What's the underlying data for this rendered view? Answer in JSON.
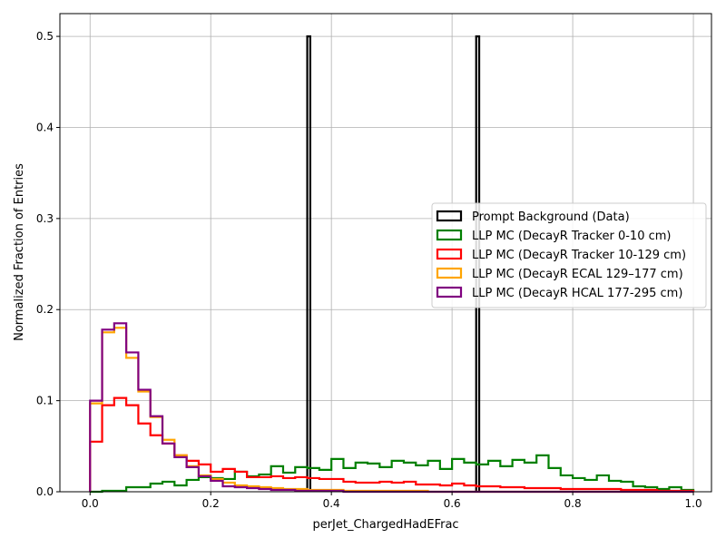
{
  "chart_data": {
    "type": "histogram",
    "xlabel": "perJet_ChargedHadEFrac",
    "ylabel": "Normalized Fraction of Entries",
    "xlim": [
      -0.05,
      1.03
    ],
    "ylim": [
      0,
      0.525
    ],
    "x_ticks": [
      "0.0",
      "0.2",
      "0.4",
      "0.6",
      "0.8",
      "1.0"
    ],
    "x_tick_values": [
      0.0,
      0.2,
      0.4,
      0.6,
      0.8,
      1.0
    ],
    "y_ticks": [
      "0.0",
      "0.1",
      "0.2",
      "0.3",
      "0.4",
      "0.5"
    ],
    "y_tick_values": [
      0.0,
      0.1,
      0.2,
      0.3,
      0.4,
      0.5
    ],
    "grid": true,
    "legend_position": "center-right",
    "bin_start": 0.0,
    "bin_width": 0.02,
    "series": [
      {
        "name": "Prompt Background (Data)",
        "color": "#000000",
        "bins": [
          {
            "x0": 0.36,
            "x1": 0.365,
            "y": 0.5
          },
          {
            "x0": 0.64,
            "x1": 0.645,
            "y": 0.5
          }
        ]
      },
      {
        "name": "LLP MC (DecayR Tracker 0-10 cm)",
        "color": "#008000",
        "values": [
          0.0,
          0.001,
          0.001,
          0.005,
          0.005,
          0.009,
          0.011,
          0.007,
          0.013,
          0.016,
          0.015,
          0.014,
          0.022,
          0.017,
          0.019,
          0.028,
          0.021,
          0.027,
          0.026,
          0.024,
          0.036,
          0.026,
          0.032,
          0.031,
          0.027,
          0.034,
          0.032,
          0.029,
          0.034,
          0.025,
          0.036,
          0.032,
          0.03,
          0.034,
          0.028,
          0.035,
          0.032,
          0.04,
          0.026,
          0.018,
          0.015,
          0.013,
          0.018,
          0.012,
          0.011,
          0.006,
          0.005,
          0.003,
          0.005,
          0.002
        ]
      },
      {
        "name": "LLP MC (DecayR Tracker 10-129 cm)",
        "color": "#ff0000",
        "values": [
          0.055,
          0.095,
          0.103,
          0.095,
          0.075,
          0.062,
          0.053,
          0.04,
          0.034,
          0.03,
          0.022,
          0.025,
          0.022,
          0.016,
          0.016,
          0.017,
          0.015,
          0.016,
          0.015,
          0.014,
          0.014,
          0.011,
          0.01,
          0.01,
          0.011,
          0.01,
          0.011,
          0.008,
          0.008,
          0.007,
          0.009,
          0.007,
          0.006,
          0.006,
          0.005,
          0.005,
          0.004,
          0.004,
          0.004,
          0.003,
          0.003,
          0.003,
          0.003,
          0.003,
          0.002,
          0.002,
          0.002,
          0.001,
          0.001,
          0.001
        ]
      },
      {
        "name": "LLP MC (DecayR ECAL 129–177 cm)",
        "color": "#ffa500",
        "values": [
          0.097,
          0.175,
          0.18,
          0.147,
          0.11,
          0.082,
          0.057,
          0.04,
          0.028,
          0.018,
          0.014,
          0.01,
          0.007,
          0.006,
          0.005,
          0.004,
          0.003,
          0.003,
          0.002,
          0.002,
          0.002,
          0.001,
          0.001,
          0.001,
          0.001,
          0.001,
          0.001,
          0.001,
          0.0,
          0.0,
          0.0,
          0.0,
          0.0,
          0.0,
          0.0,
          0.0,
          0.0,
          0.0,
          0.0,
          0.0,
          0.0,
          0.0,
          0.0,
          0.0,
          0.0,
          0.0,
          0.0,
          0.0,
          0.0,
          0.0
        ]
      },
      {
        "name": "LLP MC (DecayR HCAL 177-295 cm)",
        "color": "#800080",
        "values": [
          0.1,
          0.178,
          0.185,
          0.153,
          0.112,
          0.083,
          0.053,
          0.038,
          0.027,
          0.017,
          0.012,
          0.006,
          0.005,
          0.004,
          0.003,
          0.002,
          0.002,
          0.001,
          0.001,
          0.001,
          0.001,
          0.0,
          0.0,
          0.0,
          0.0,
          0.0,
          0.0,
          0.0,
          0.0,
          0.0,
          0.0,
          0.0,
          0.0,
          0.0,
          0.0,
          0.0,
          0.0,
          0.0,
          0.0,
          0.0,
          0.0,
          0.0,
          0.0,
          0.0,
          0.0,
          0.0,
          0.0,
          0.0,
          0.0,
          0.0
        ]
      }
    ]
  }
}
